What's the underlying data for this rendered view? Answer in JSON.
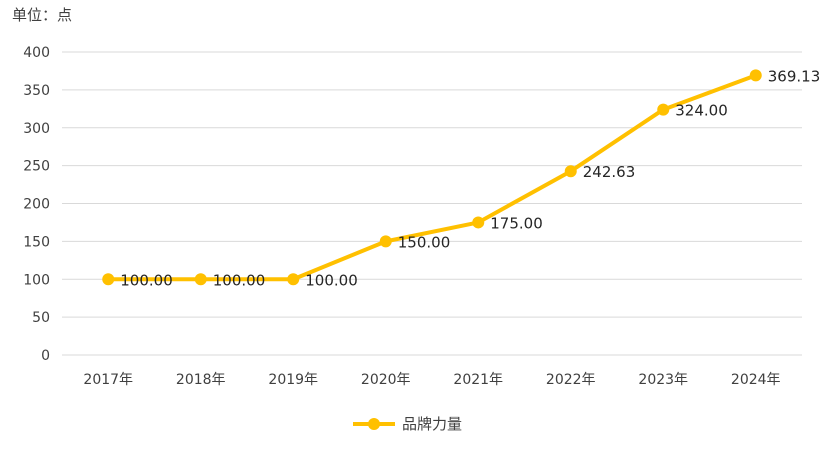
{
  "chart_data": {
    "type": "line",
    "unit_label": "单位：点",
    "categories": [
      "2017年",
      "2018年",
      "2019年",
      "2020年",
      "2021年",
      "2022年",
      "2023年",
      "2024年"
    ],
    "series": [
      {
        "name": "品牌力量",
        "values": [
          100.0,
          100.0,
          100.0,
          150.0,
          175.0,
          242.63,
          324.0,
          369.13
        ],
        "value_labels": [
          "100.00",
          "100.00",
          "100.00",
          "150.00",
          "175.00",
          "242.63",
          "324.00",
          "369.13"
        ],
        "color": "#FFC000"
      }
    ],
    "y_ticks": [
      0,
      50,
      100,
      150,
      200,
      250,
      300,
      350,
      400
    ],
    "ylim": [
      0,
      400
    ],
    "grid": true,
    "legend_position": "bottom"
  }
}
